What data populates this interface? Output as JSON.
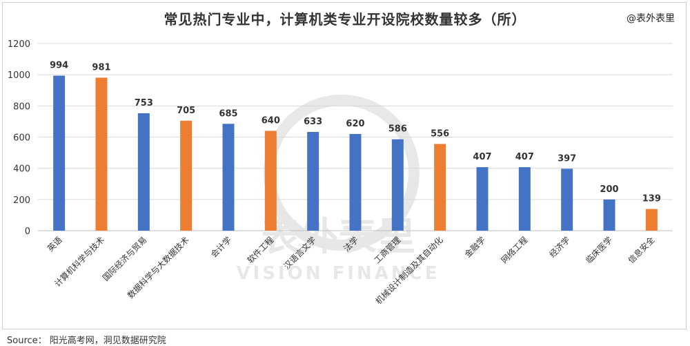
{
  "header": {
    "title": "常见热门专业中，计算机类专业开设院校数量较多（所）",
    "brand": "@表外表里"
  },
  "footer": {
    "source": "Source：  阳光高考网，洞见数据研究院"
  },
  "watermark": {
    "main": "表外表里",
    "sub": "VISION FINANCE"
  },
  "colors": {
    "blue": "#4472C4",
    "orange": "#ED7D31",
    "grid": "#D9D9D9",
    "text": "#333333"
  },
  "chart_data": {
    "type": "bar",
    "title": "常见热门专业中，计算机类专业开设院校数量较多（所）",
    "xlabel": "",
    "ylabel": "",
    "ylim": [
      0,
      1200
    ],
    "yticks": [
      0,
      200,
      400,
      600,
      800,
      1000,
      1200
    ],
    "grid": true,
    "categories": [
      "英语",
      "计算机科学与技术",
      "国际经济与贸易",
      "数据科学与大数据技术",
      "会计学",
      "软件工程",
      "汉语言文学",
      "法学",
      "工商管理",
      "机械设计制造及其自动化",
      "金融学",
      "网络工程",
      "经济学",
      "临床医学",
      "信息安全"
    ],
    "values": [
      994,
      981,
      753,
      705,
      685,
      640,
      633,
      620,
      586,
      556,
      407,
      407,
      397,
      200,
      139
    ],
    "bar_colors": [
      "blue",
      "orange",
      "blue",
      "orange",
      "blue",
      "orange",
      "blue",
      "blue",
      "blue",
      "orange",
      "blue",
      "blue",
      "blue",
      "blue",
      "orange"
    ]
  }
}
